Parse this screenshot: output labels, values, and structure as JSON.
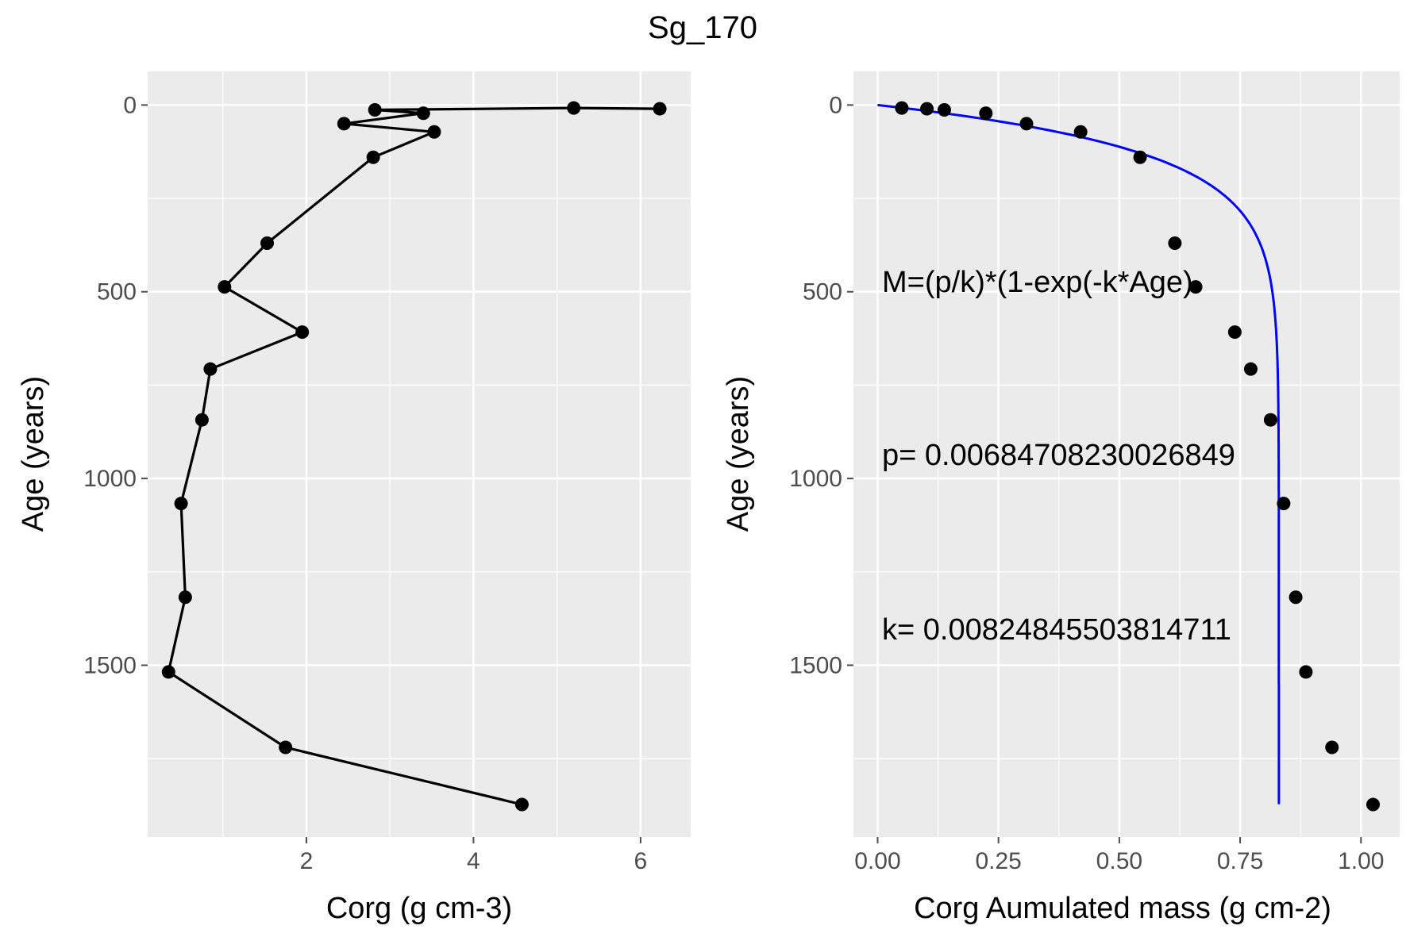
{
  "figure": {
    "title": "Sg_170"
  },
  "colors": {
    "panel_bg": "#ebebeb",
    "grid": "#ffffff",
    "tick": "#4d4d4d",
    "fit_line": "#0000ff",
    "points": "#000000"
  },
  "chart_data": [
    {
      "type": "line",
      "panel": "left",
      "xlabel": "Corg (g cm-3)",
      "ylabel": "Age (years)",
      "xlim": [
        0.1,
        6.6
      ],
      "ylim": [
        -90,
        1960
      ],
      "y_reversed": true,
      "x_ticks": [
        "2",
        "4",
        "6"
      ],
      "x_tick_values": [
        2,
        4,
        6
      ],
      "y_ticks": [
        "0",
        "500",
        "1000",
        "1500"
      ],
      "y_tick_values": [
        0,
        500,
        1000,
        1500
      ],
      "grid": true,
      "points": [
        {
          "x": 6.23,
          "y": 10
        },
        {
          "x": 5.2,
          "y": 8
        },
        {
          "x": 2.82,
          "y": 13
        },
        {
          "x": 3.4,
          "y": 22
        },
        {
          "x": 2.45,
          "y": 50
        },
        {
          "x": 3.53,
          "y": 72
        },
        {
          "x": 2.8,
          "y": 140
        },
        {
          "x": 1.53,
          "y": 370
        },
        {
          "x": 1.02,
          "y": 487
        },
        {
          "x": 1.95,
          "y": 608
        },
        {
          "x": 0.85,
          "y": 707
        },
        {
          "x": 0.75,
          "y": 843
        },
        {
          "x": 0.5,
          "y": 1067
        },
        {
          "x": 0.55,
          "y": 1318
        },
        {
          "x": 0.35,
          "y": 1518
        },
        {
          "x": 1.75,
          "y": 1720
        },
        {
          "x": 4.58,
          "y": 1873
        }
      ]
    },
    {
      "type": "scatter",
      "panel": "right",
      "xlabel": "Corg Aumulated mass (g cm-2)",
      "ylabel": "Age (years)",
      "xlim": [
        -0.05,
        1.08
      ],
      "ylim": [
        -90,
        1960
      ],
      "y_reversed": true,
      "x_ticks": [
        "0.00",
        "0.25",
        "0.50",
        "0.75",
        "1.00"
      ],
      "x_tick_values": [
        0,
        0.25,
        0.5,
        0.75,
        1.0
      ],
      "y_ticks": [
        "0",
        "500",
        "1000",
        "1500"
      ],
      "y_tick_values": [
        0,
        500,
        1000,
        1500
      ],
      "grid": true,
      "points": [
        {
          "x": 0.05,
          "y": 8
        },
        {
          "x": 0.102,
          "y": 10
        },
        {
          "x": 0.138,
          "y": 13
        },
        {
          "x": 0.224,
          "y": 22
        },
        {
          "x": 0.308,
          "y": 50
        },
        {
          "x": 0.42,
          "y": 72
        },
        {
          "x": 0.543,
          "y": 140
        },
        {
          "x": 0.615,
          "y": 370
        },
        {
          "x": 0.658,
          "y": 487
        },
        {
          "x": 0.739,
          "y": 608
        },
        {
          "x": 0.772,
          "y": 707
        },
        {
          "x": 0.813,
          "y": 843
        },
        {
          "x": 0.84,
          "y": 1067
        },
        {
          "x": 0.865,
          "y": 1318
        },
        {
          "x": 0.886,
          "y": 1518
        },
        {
          "x": 0.94,
          "y": 1720
        },
        {
          "x": 1.025,
          "y": 1873
        }
      ],
      "fit": {
        "equation": "M=(p/k)*(1-exp(-k*Age)",
        "p_label": "p= 0.00684708230026849",
        "k_label": "k= 0.00824845503814711",
        "p": 0.00684708230026849,
        "k": 0.00824845503814711,
        "age_range": [
          0,
          1873
        ]
      }
    }
  ]
}
